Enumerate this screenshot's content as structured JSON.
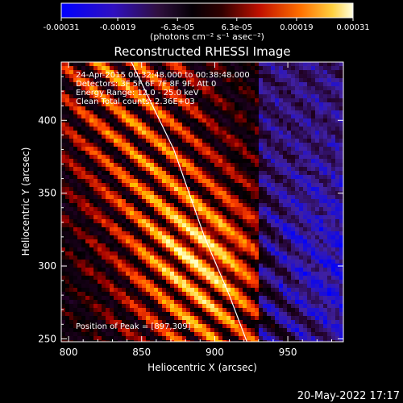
{
  "colorbar": {
    "tick_labels": [
      "-0.00031",
      "-0.00019",
      "-6.3e-05",
      "6.3e-05",
      "0.00019",
      "0.00031"
    ],
    "tick_values": [
      -0.00031,
      -0.00019,
      -6.3e-05,
      6.3e-05,
      0.00019,
      0.00031
    ],
    "range": [
      -0.00031,
      0.00031
    ],
    "unit_label": "(photons cm⁻² s⁻¹ asec⁻²)"
  },
  "chart_data": {
    "type": "heatmap",
    "title": "Reconstructed RHESSI Image",
    "xlabel": "Heliocentric X (arcsec)",
    "ylabel": "Heliocentric Y (arcsec)",
    "xlim": [
      795,
      988
    ],
    "ylim": [
      248,
      440
    ],
    "x_ticks": [
      800,
      850,
      900,
      950
    ],
    "y_ticks": [
      250,
      300,
      350,
      400
    ],
    "annotations": [
      "24-Apr-2015 00:32:48.000 to 00:38:48.000",
      "Detectors: 3F 5F 6F 7F 8F 9F, Att 0",
      "Energy Range: 12.0 - 25.0 keV",
      "Clean     Total counts: 2.36E+03"
    ],
    "peak_label": "Position of Peak = [897,309]",
    "peak": [
      897,
      309
    ],
    "limb_curve": [
      [
        843,
        440
      ],
      [
        872,
        380
      ],
      [
        893,
        320
      ],
      [
        910,
        280
      ],
      [
        922,
        248
      ]
    ],
    "colormap": [
      "#0000ff",
      "#4020a0",
      "#200020",
      "#000000",
      "#a00000",
      "#ff4000",
      "#ffc000",
      "#ffffc0"
    ]
  },
  "footer": {
    "timestamp": "20-May-2022 17:17"
  }
}
